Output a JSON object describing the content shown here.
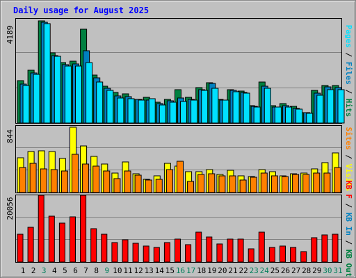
{
  "title": "Daily usage for August 2025",
  "colors": {
    "background": "#c0c0c0",
    "grid": "#808080",
    "hits": "#008040",
    "files": "#0080c0",
    "pages": "#00e0ff",
    "visits": "#ffff00",
    "sites": "#ff8000",
    "kbytes_in": "#008040",
    "kbytes_out": "#0080c0",
    "kbytes_f": "#ff0000",
    "weekend_label": "#00805c"
  },
  "chart_data": [
    {
      "type": "bar",
      "name": "hits-files-pages",
      "ylim": [
        0,
        4189
      ],
      "ytick_label": "4189",
      "right_label": [
        {
          "text": "Pages",
          "color": "#00e0ff"
        },
        {
          "text": " / ",
          "color": "#000000"
        },
        {
          "text": "Files",
          "color": "#0080c0"
        },
        {
          "text": " / ",
          "color": "#000000"
        },
        {
          "text": "Hits",
          "color": "#008040"
        }
      ],
      "categories": [
        "1",
        "2",
        "3",
        "4",
        "5",
        "6",
        "7",
        "8",
        "9",
        "10",
        "11",
        "12",
        "13",
        "14",
        "15",
        "16",
        "17",
        "18",
        "19",
        "20",
        "21",
        "22",
        "23",
        "24",
        "25",
        "26",
        "27",
        "28",
        "29",
        "30",
        "31"
      ],
      "series": [
        {
          "name": "Hits",
          "color": "#008040",
          "values": [
            1710,
            2130,
            4110,
            2820,
            2420,
            2480,
            3780,
            1920,
            1480,
            1220,
            1180,
            960,
            1040,
            840,
            960,
            1340,
            1040,
            1430,
            1610,
            960,
            1330,
            1280,
            700,
            1650,
            700,
            780,
            670,
            430,
            1310,
            1510,
            1500
          ]
        },
        {
          "name": "Files",
          "color": "#0080c0",
          "values": [
            1570,
            2010,
            4040,
            2720,
            2340,
            2360,
            2900,
            1820,
            1400,
            1100,
            1060,
            940,
            920,
            790,
            880,
            1000,
            960,
            1340,
            1580,
            920,
            1310,
            1240,
            660,
            1480,
            650,
            700,
            600,
            420,
            1210,
            1440,
            1430
          ]
        },
        {
          "name": "Pages",
          "color": "#00e0ff",
          "values": [
            1520,
            1960,
            3990,
            2680,
            2280,
            2300,
            2430,
            1650,
            1320,
            1000,
            970,
            920,
            970,
            740,
            830,
            860,
            910,
            1300,
            1390,
            920,
            1260,
            1200,
            630,
            1410,
            640,
            650,
            570,
            400,
            1120,
            1330,
            1340
          ]
        }
      ]
    },
    {
      "type": "bar",
      "name": "visits-sites",
      "ylim": [
        0,
        844
      ],
      "ytick_label": "844",
      "right_label": [
        {
          "text": "Sites",
          "color": "#ff8000"
        },
        {
          "text": " / ",
          "color": "#000000"
        },
        {
          "text": "Visits",
          "color": "#ffff00"
        }
      ],
      "categories": [
        "1",
        "2",
        "3",
        "4",
        "5",
        "6",
        "7",
        "8",
        "9",
        "10",
        "11",
        "12",
        "13",
        "14",
        "15",
        "16",
        "17",
        "18",
        "19",
        "20",
        "21",
        "22",
        "23",
        "24",
        "25",
        "26",
        "27",
        "28",
        "29",
        "30",
        "31"
      ],
      "series": [
        {
          "name": "Visits",
          "color": "#ffff00",
          "values": [
            440,
            520,
            530,
            520,
            430,
            830,
            590,
            460,
            360,
            250,
            390,
            240,
            170,
            210,
            370,
            330,
            260,
            260,
            290,
            230,
            280,
            210,
            200,
            290,
            260,
            210,
            240,
            250,
            300,
            380,
            500
          ]
        },
        {
          "name": "Sites",
          "color": "#ff8000",
          "values": [
            320,
            370,
            300,
            290,
            270,
            480,
            360,
            330,
            270,
            180,
            270,
            220,
            160,
            170,
            290,
            400,
            140,
            230,
            240,
            210,
            210,
            160,
            190,
            250,
            210,
            200,
            230,
            230,
            250,
            250,
            320
          ]
        }
      ]
    },
    {
      "type": "bar",
      "name": "kbytes",
      "ylim": [
        0,
        20056
      ],
      "ytick_label": "20056",
      "right_label": [
        {
          "text": "KB F",
          "color": "#ff0000"
        },
        {
          "text": " / ",
          "color": "#000000"
        },
        {
          "text": "KB In",
          "color": "#0080c0"
        },
        {
          "text": " / ",
          "color": "#000000"
        },
        {
          "text": "KB Out",
          "color": "#008040"
        }
      ],
      "categories": [
        "1",
        "2",
        "3",
        "4",
        "5",
        "6",
        "7",
        "8",
        "9",
        "10",
        "11",
        "12",
        "13",
        "14",
        "15",
        "16",
        "17",
        "18",
        "19",
        "20",
        "21",
        "22",
        "23",
        "24",
        "25",
        "26",
        "27",
        "28",
        "29",
        "30",
        "31"
      ],
      "series": [
        {
          "name": "KB F",
          "color": "#ff0000",
          "values": [
            8300,
            10400,
            20056,
            13800,
            11600,
            13500,
            20056,
            10000,
            8400,
            5800,
            6700,
            5600,
            4800,
            4400,
            5800,
            6800,
            5300,
            8900,
            7600,
            5500,
            6900,
            6900,
            3900,
            8900,
            4300,
            4800,
            4400,
            3100,
            7400,
            8100,
            8300
          ]
        }
      ]
    }
  ],
  "x_labels": [
    "1",
    "2",
    "3",
    "4",
    "5",
    "6",
    "7",
    "8",
    "9",
    "10",
    "11",
    "12",
    "13",
    "14",
    "15",
    "16",
    "17",
    "18",
    "19",
    "20",
    "21",
    "22",
    "23",
    "24",
    "25",
    "26",
    "27",
    "28",
    "29",
    "30",
    "31"
  ],
  "weekend_days": [
    3,
    9,
    16,
    17,
    23,
    24,
    30,
    31
  ]
}
